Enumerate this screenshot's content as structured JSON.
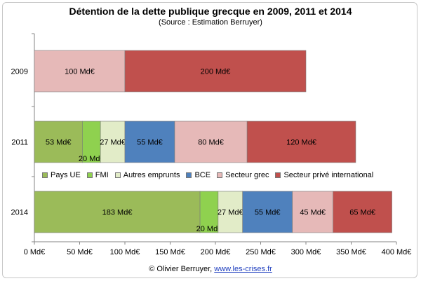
{
  "chart_data": {
    "type": "bar",
    "orientation": "horizontal",
    "stacked": true,
    "title": "Détention de la dette publique grecque en 2009, 2011 et 2014",
    "subtitle": "(Source : Estimation Berruyer)",
    "categories": [
      "2009",
      "2011",
      "2014"
    ],
    "xlim": [
      0,
      400
    ],
    "x_ticks": [
      "0 Md€",
      "50 Md€",
      "100 Md€",
      "150 Md€",
      "200 Md€",
      "250 Md€",
      "300 Md€",
      "350 Md€",
      "400 Md€"
    ],
    "x_tick_values": [
      0,
      50,
      100,
      150,
      200,
      250,
      300,
      350,
      400
    ],
    "grid": false,
    "legend_position": "between 2011 and 2014 bars",
    "bars": [
      {
        "category": "2009",
        "segments": [
          {
            "series": "Secteur grec",
            "value": 100,
            "label": "100 Md€"
          },
          {
            "series": "Secteur privé international",
            "value": 200,
            "label": "200 Md€"
          }
        ]
      },
      {
        "category": "2011",
        "segments": [
          {
            "series": "Pays UE",
            "value": 53,
            "label": "53 Md€"
          },
          {
            "series": "FMI",
            "value": 20,
            "label": "20 Md€"
          },
          {
            "series": "Autres emprunts",
            "value": 27,
            "label": "27 Md€"
          },
          {
            "series": "BCE",
            "value": 55,
            "label": "55 Md€"
          },
          {
            "series": "Secteur grec",
            "value": 80,
            "label": "80 Md€"
          },
          {
            "series": "Secteur privé international",
            "value": 120,
            "label": "120 Md€"
          }
        ]
      },
      {
        "category": "2014",
        "segments": [
          {
            "series": "Pays UE",
            "value": 183,
            "label": "183 Md€"
          },
          {
            "series": "FMI",
            "value": 20,
            "label": "20 Md€"
          },
          {
            "series": "Autres emprunts",
            "value": 27,
            "label": "27 Md€"
          },
          {
            "series": "BCE",
            "value": 55,
            "label": "55 Md€"
          },
          {
            "series": "Secteur grec",
            "value": 45,
            "label": "45 Md€"
          },
          {
            "series": "Secteur privé international",
            "value": 65,
            "label": "65 Md€"
          }
        ]
      }
    ],
    "series": [
      {
        "name": "Pays UE",
        "color": "#9bbb59"
      },
      {
        "name": "FMI",
        "color": "#8fd14f"
      },
      {
        "name": "Autres emprunts",
        "color": "#e2ecc8"
      },
      {
        "name": "BCE",
        "color": "#4f81bd"
      },
      {
        "name": "Secteur grec",
        "color": "#e6b9b8"
      },
      {
        "name": "Secteur privé international",
        "color": "#c0504d"
      }
    ]
  },
  "footer": {
    "credit": "© Olivier Berruyer,",
    "link": "www.les-crises.fr"
  }
}
